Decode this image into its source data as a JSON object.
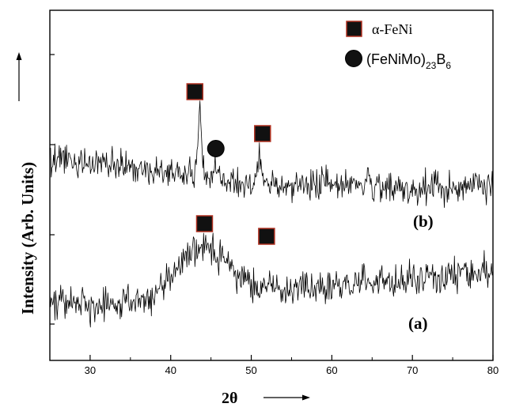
{
  "chart_data": {
    "type": "line",
    "xlabel": "2θ",
    "ylabel": "Intensity (Arb. Units)",
    "xlim": [
      25,
      80
    ],
    "x_ticks": [
      "30",
      "40",
      "50",
      "60",
      "70",
      "80"
    ],
    "grid": false,
    "legend": {
      "placement": "top-right",
      "entries": [
        {
          "marker": "square",
          "label": "α-FeNi"
        },
        {
          "marker": "circle",
          "label_parts": [
            "(FeNiMo)",
            "23",
            "B",
            "6"
          ]
        }
      ]
    },
    "series": [
      {
        "name": "(a)",
        "baseline_points": [
          [
            25,
            385
          ],
          [
            30,
            385
          ],
          [
            35,
            382
          ],
          [
            38,
            370
          ],
          [
            40,
            345
          ],
          [
            42,
            325
          ],
          [
            44,
            312
          ],
          [
            46,
            322
          ],
          [
            48,
            345
          ],
          [
            50,
            362
          ],
          [
            55,
            366
          ],
          [
            60,
            360
          ],
          [
            70,
            352
          ],
          [
            80,
            343
          ]
        ],
        "noise": 15,
        "seed": 11
      },
      {
        "name": "(b)",
        "baseline_points": [
          [
            25,
            200
          ],
          [
            30,
            205
          ],
          [
            40,
            218
          ],
          [
            43,
            222
          ],
          [
            48,
            230
          ],
          [
            55,
            235
          ],
          [
            60,
            232
          ],
          [
            70,
            238
          ],
          [
            80,
            235
          ]
        ],
        "noise": 14,
        "seed": 42,
        "peaks": [
          {
            "x": 43.6,
            "height": 85,
            "width": 0.32
          },
          {
            "x": 51.0,
            "height": 38,
            "width": 0.25
          },
          {
            "x": 45.6,
            "height": 12,
            "width": 0.35
          }
        ]
      }
    ],
    "markers": [
      {
        "type": "square",
        "x": 43.0,
        "y_level": 116
      },
      {
        "type": "circle",
        "x": 45.6,
        "y_level": 188
      },
      {
        "type": "square",
        "x": 51.4,
        "y_level": 169
      },
      {
        "type": "square",
        "x": 44.2,
        "y_level": 283
      },
      {
        "type": "square",
        "x": 51.9,
        "y_level": 299
      }
    ],
    "curve_labels": [
      {
        "text": "(b)",
        "series": "(b)"
      },
      {
        "text": "(a)",
        "series": "(a)"
      }
    ]
  }
}
